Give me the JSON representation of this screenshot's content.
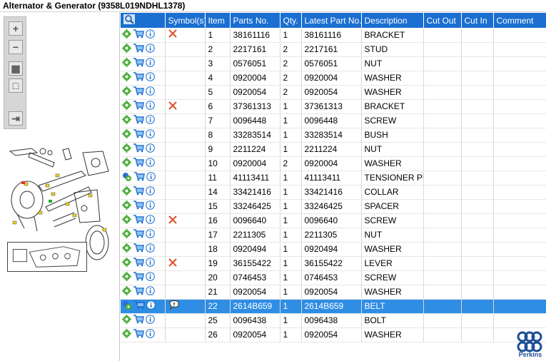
{
  "window": {
    "title": "Alternator & Generator (9358L019NDHL1378)"
  },
  "toolbar": {
    "buttons": [
      {
        "name": "zoom-in-button",
        "glyph": "+"
      },
      {
        "name": "zoom-out-button",
        "glyph": "−"
      },
      {
        "name": "fit-all-button",
        "glyph": "▦"
      },
      {
        "name": "fit-window-button",
        "glyph": "□"
      },
      {
        "name": "toggle-list-button",
        "glyph": "⇥"
      }
    ]
  },
  "grid": {
    "columns": [
      "",
      "Symbol(s)",
      "Item",
      "Parts No.",
      "Qty.",
      "Latest Part No.",
      "Description",
      "Cut Out",
      "Cut In",
      "Comment"
    ],
    "rows": [
      {
        "symbol": "x",
        "item": "1",
        "part": "38161116",
        "qty": "1",
        "latest": "38161116",
        "desc": "BRACKET"
      },
      {
        "symbol": "",
        "item": "2",
        "part": "2217161",
        "qty": "2",
        "latest": "2217161",
        "desc": "STUD"
      },
      {
        "symbol": "",
        "item": "3",
        "part": "0576051",
        "qty": "2",
        "latest": "0576051",
        "desc": "NUT"
      },
      {
        "symbol": "",
        "item": "4",
        "part": "0920004",
        "qty": "2",
        "latest": "0920004",
        "desc": "WASHER"
      },
      {
        "symbol": "",
        "item": "5",
        "part": "0920054",
        "qty": "2",
        "latest": "0920054",
        "desc": "WASHER"
      },
      {
        "symbol": "x",
        "item": "6",
        "part": "37361313",
        "qty": "1",
        "latest": "37361313",
        "desc": "BRACKET"
      },
      {
        "symbol": "",
        "item": "7",
        "part": "0096448",
        "qty": "1",
        "latest": "0096448",
        "desc": "SCREW"
      },
      {
        "symbol": "",
        "item": "8",
        "part": "33283514",
        "qty": "1",
        "latest": "33283514",
        "desc": "BUSH"
      },
      {
        "symbol": "",
        "item": "9",
        "part": "2211224",
        "qty": "1",
        "latest": "2211224",
        "desc": "NUT"
      },
      {
        "symbol": "",
        "item": "10",
        "part": "0920004",
        "qty": "2",
        "latest": "0920004",
        "desc": "WASHER"
      },
      {
        "symbol": "",
        "item": "11",
        "part": "41113411",
        "qty": "1",
        "latest": "41113411",
        "desc": "TENSIONER PUL",
        "multi": true
      },
      {
        "symbol": "",
        "item": "14",
        "part": "33421416",
        "qty": "1",
        "latest": "33421416",
        "desc": "COLLAR"
      },
      {
        "symbol": "",
        "item": "15",
        "part": "33246425",
        "qty": "1",
        "latest": "33246425",
        "desc": "SPACER"
      },
      {
        "symbol": "x",
        "item": "16",
        "part": "0096640",
        "qty": "1",
        "latest": "0096640",
        "desc": "SCREW"
      },
      {
        "symbol": "",
        "item": "17",
        "part": "2211305",
        "qty": "1",
        "latest": "2211305",
        "desc": "NUT"
      },
      {
        "symbol": "",
        "item": "18",
        "part": "0920494",
        "qty": "1",
        "latest": "0920494",
        "desc": "WASHER"
      },
      {
        "symbol": "x",
        "item": "19",
        "part": "36155422",
        "qty": "1",
        "latest": "36155422",
        "desc": "LEVER"
      },
      {
        "symbol": "",
        "item": "20",
        "part": "0746453",
        "qty": "1",
        "latest": "0746453",
        "desc": "SCREW"
      },
      {
        "symbol": "",
        "item": "21",
        "part": "0920054",
        "qty": "1",
        "latest": "0920054",
        "desc": "WASHER"
      },
      {
        "symbol": "note",
        "item": "22",
        "part": "2614B659",
        "qty": "1",
        "latest": "2614B659",
        "desc": "BELT",
        "selected": true,
        "multi": true
      },
      {
        "symbol": "",
        "item": "25",
        "part": "0096438",
        "qty": "1",
        "latest": "0096438",
        "desc": "BOLT"
      },
      {
        "symbol": "",
        "item": "26",
        "part": "0920054",
        "qty": "1",
        "latest": "0920054",
        "desc": "WASHER"
      }
    ]
  },
  "brand": {
    "name": "Perkins",
    "color": "#1e4e98"
  },
  "colors": {
    "header": "#1a6fd1",
    "selected": "#2f8de4",
    "symbol_x": "#e0502a"
  }
}
